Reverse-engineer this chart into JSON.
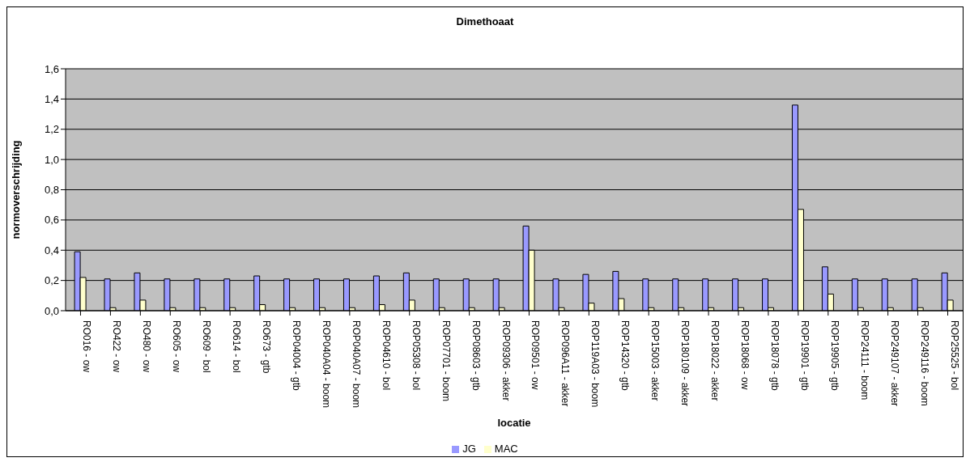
{
  "chart_data": {
    "type": "bar",
    "title": "Dimethoaat",
    "xlabel": "locatie",
    "ylabel": "normoverschrijding",
    "categories": [
      "RO016 - ow",
      "RO422 - ow",
      "RO480 - ow",
      "RO605 - ow",
      "RO609 - bol",
      "RO614 - bol",
      "RO673 - gtb",
      "ROP04004 - gtb",
      "ROP040A04 - boom",
      "ROP040A07 - boom",
      "ROP04610 - bol",
      "ROP05308 - bol",
      "ROP07701 - boom",
      "ROP08603 - gtb",
      "ROP09306 - akker",
      "ROP09501 - ow",
      "ROP096A11 - akker",
      "ROP119A03 - boom",
      "ROP14320 - gtb",
      "ROP15003 - akker",
      "ROP180109 - akker",
      "ROP18022 - akker",
      "ROP18068 - ow",
      "ROP18078 - gtb",
      "ROP19901 - gtb",
      "ROP19905 - gtb",
      "ROP24111 - boom",
      "ROP249107 - akker",
      "ROP249116 - boom",
      "ROP25525 - bol"
    ],
    "series": [
      {
        "name": "JG",
        "color": "#9999ff",
        "values": [
          0.39,
          0.21,
          0.25,
          0.21,
          0.21,
          0.21,
          0.23,
          0.21,
          0.21,
          0.21,
          0.23,
          0.25,
          0.21,
          0.21,
          0.21,
          0.56,
          0.21,
          0.24,
          0.26,
          0.21,
          0.21,
          0.21,
          0.21,
          0.21,
          1.36,
          0.29,
          0.21,
          0.21,
          0.21,
          0.25
        ]
      },
      {
        "name": "MAC",
        "color": "#ffffcc",
        "values": [
          0.22,
          0.02,
          0.07,
          0.02,
          0.02,
          0.02,
          0.04,
          0.02,
          0.02,
          0.02,
          0.04,
          0.07,
          0.02,
          0.02,
          0.02,
          0.4,
          0.02,
          0.05,
          0.08,
          0.02,
          0.02,
          0.02,
          0.02,
          0.02,
          0.67,
          0.11,
          0.02,
          0.02,
          0.02,
          0.07
        ]
      }
    ],
    "ylim": [
      0,
      1.6
    ],
    "yticks": [
      {
        "value": 0,
        "label": "0,0"
      },
      {
        "value": 0.2,
        "label": "0,2"
      },
      {
        "value": 0.4,
        "label": "0,4"
      },
      {
        "value": 0.6,
        "label": "0,6"
      },
      {
        "value": 0.8,
        "label": "0,8"
      },
      {
        "value": 1,
        "label": "1,0"
      },
      {
        "value": 1.2,
        "label": "1,2"
      },
      {
        "value": 1.4,
        "label": "1,4"
      },
      {
        "value": 1.6,
        "label": "1,6"
      }
    ],
    "grid": "y",
    "legend": "bottom"
  }
}
